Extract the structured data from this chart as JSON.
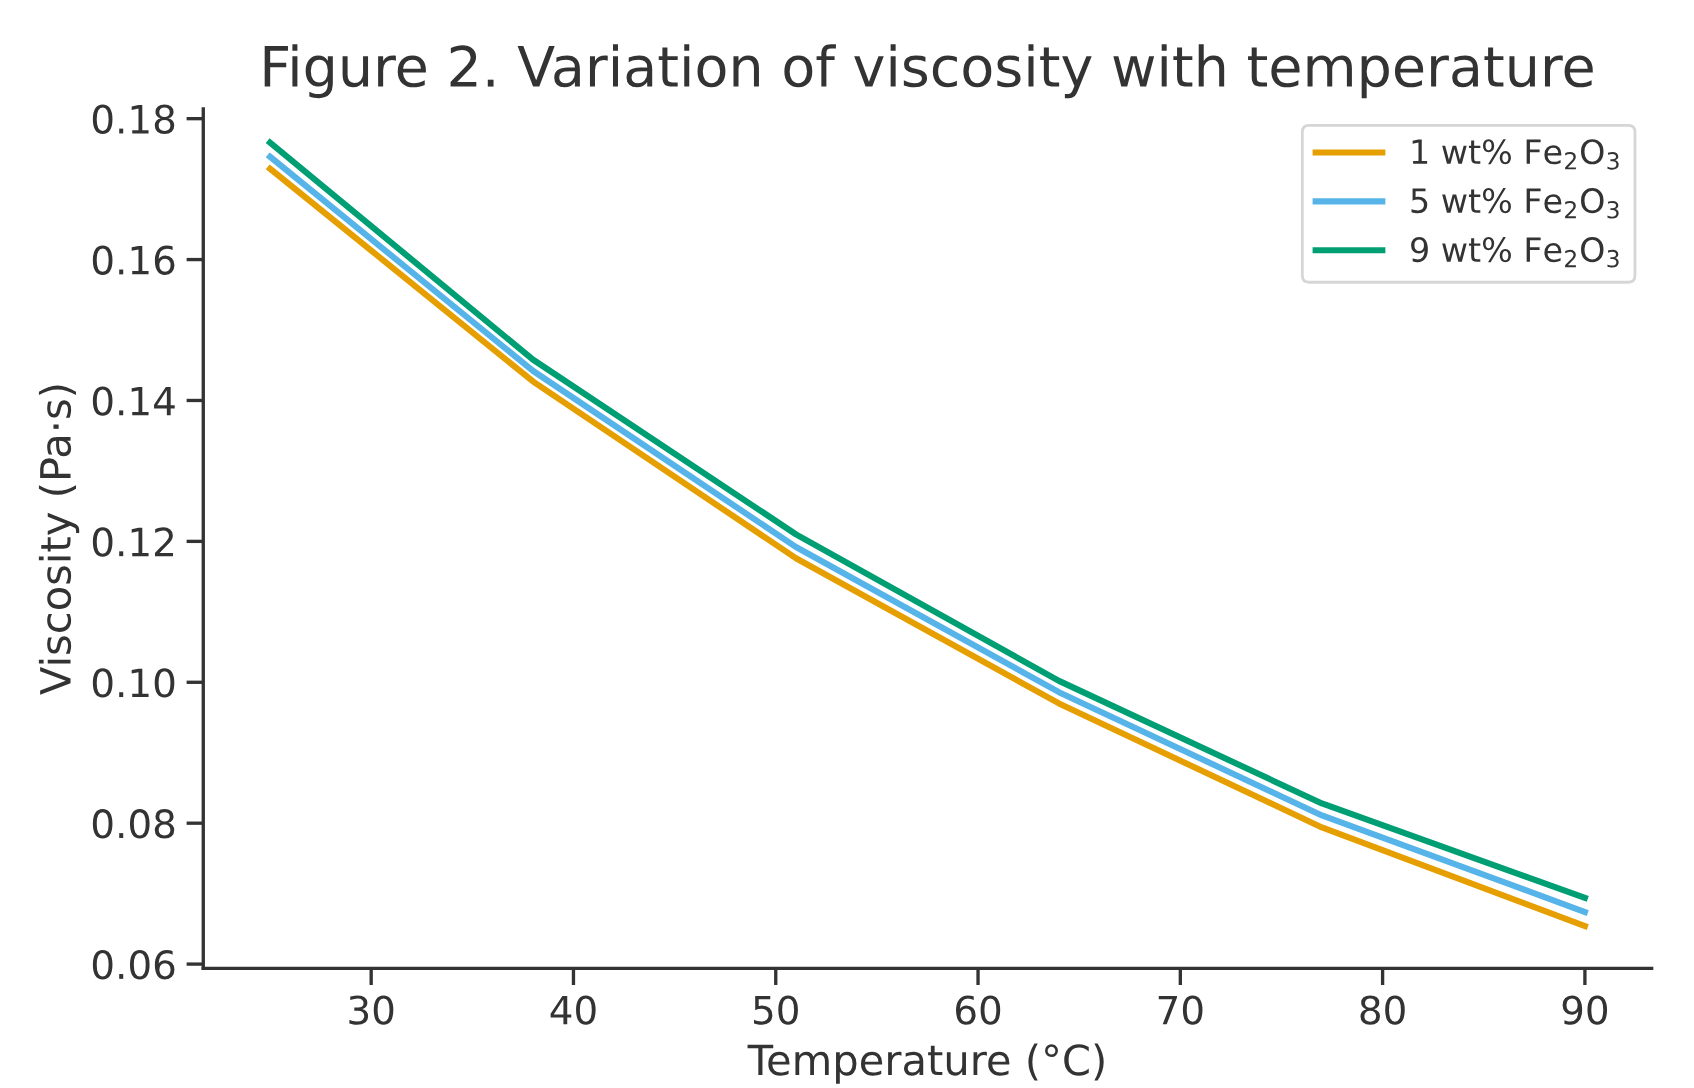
{
  "chart_data": {
    "type": "line",
    "title": "Figure 2. Variation of viscosity with temperature",
    "xlabel": "Temperature (°C)",
    "ylabel": "Viscosity (Pa·s)",
    "x": [
      25,
      38,
      51,
      64,
      77,
      90
    ],
    "series": [
      {
        "name": "1 wt% Fe$_{2}$O$_{3}$",
        "color": "#e69f00",
        "values": [
          0.1729,
          0.1427,
          0.1176,
          0.097,
          0.0794,
          0.0654
        ]
      },
      {
        "name": "5 wt% Fe$_{2}$O$_{3}$",
        "color": "#56b4e9",
        "values": [
          0.1746,
          0.1442,
          0.1192,
          0.0986,
          0.0811,
          0.0674
        ]
      },
      {
        "name": "9 wt% Fe$_{2}$O$_{3}$",
        "color": "#009e73",
        "values": [
          0.1766,
          0.1458,
          0.121,
          0.1002,
          0.0828,
          0.0694
        ]
      }
    ],
    "xlim": [
      21.7,
      93.3
    ],
    "ylim": [
      0.0594,
      0.1814
    ],
    "xticks": [
      30,
      40,
      50,
      60,
      70,
      80,
      90
    ],
    "yticks": [
      {
        "value": 0.06,
        "label": "0.06"
      },
      {
        "value": 0.08,
        "label": "0.08"
      },
      {
        "value": 0.1,
        "label": "0.10"
      },
      {
        "value": 0.12,
        "label": "0.12"
      },
      {
        "value": 0.14,
        "label": "0.14"
      },
      {
        "value": 0.16,
        "label": "0.16"
      },
      {
        "value": 0.18,
        "label": "0.18"
      }
    ],
    "grid": false,
    "legend": "top right",
    "marker": "none",
    "line_style": "solid"
  }
}
